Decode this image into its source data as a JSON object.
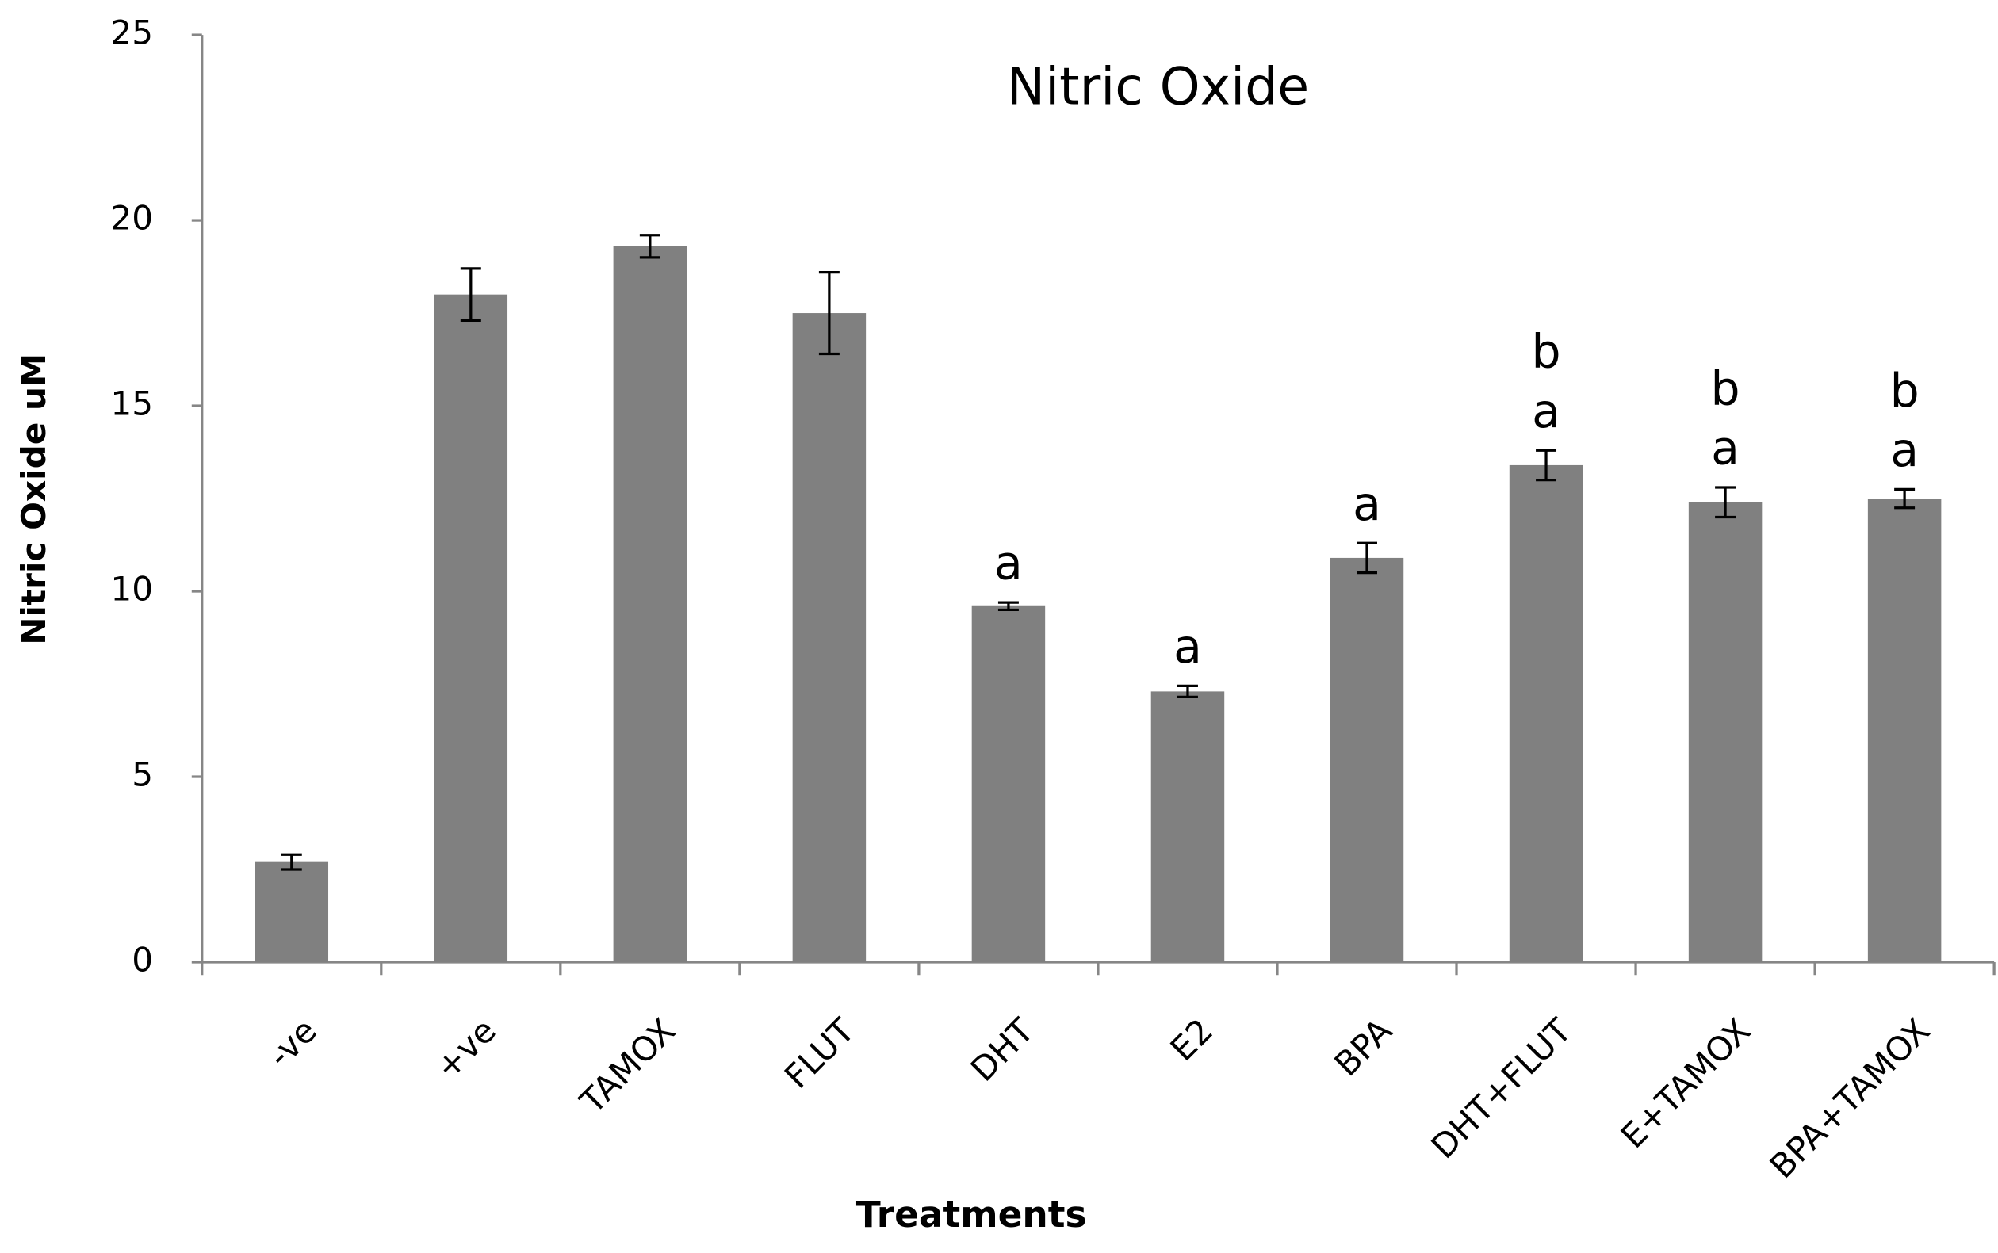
{
  "chart_data": {
    "type": "bar",
    "title": "Nitric Oxide",
    "x_label": "Treatments",
    "y_label": "Nitric Oxide uM",
    "categories": [
      "-ve",
      "+ve",
      "TAMOX",
      "FLUT",
      "DHT",
      "E2",
      "BPA",
      "DHT+FLUT",
      "E+TAMOX",
      "BPA+TAMOX"
    ],
    "values": [
      2.7,
      18.0,
      19.3,
      17.5,
      9.6,
      7.3,
      10.9,
      13.4,
      12.4,
      12.5
    ],
    "errors": [
      0.2,
      0.7,
      0.3,
      1.1,
      0.1,
      0.15,
      0.4,
      0.4,
      0.4,
      0.25
    ],
    "significance": [
      null,
      null,
      null,
      null,
      [
        "a"
      ],
      [
        "a"
      ],
      [
        "a"
      ],
      [
        "a",
        "b"
      ],
      [
        "a",
        "b"
      ],
      [
        "a",
        "b"
      ]
    ],
    "color": "#808080",
    "ylim": [
      0,
      25
    ],
    "yticks": [
      0,
      5,
      10,
      15,
      20,
      25
    ],
    "grid": false
  }
}
